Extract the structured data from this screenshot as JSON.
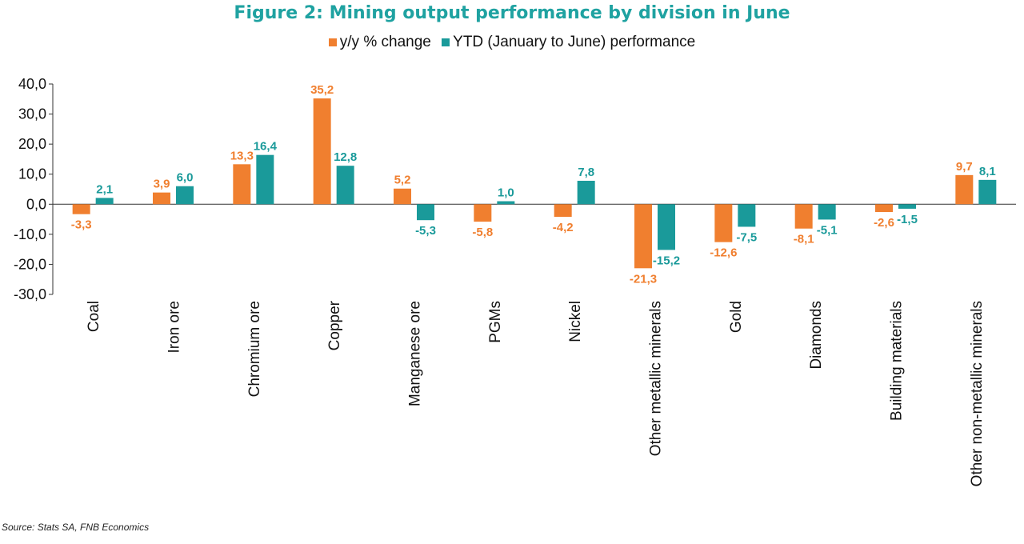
{
  "title": "Figure 2: Mining output performance by division in June",
  "source": "Source: Stats SA, FNB Economics",
  "colors": {
    "series1": "#f07f2f",
    "series2": "#1a9a9a",
    "axis": "#333333"
  },
  "chart_data": {
    "type": "bar",
    "categories": [
      "Coal",
      "Iron ore",
      "Chromium ore",
      "Copper",
      "Manganese ore",
      "PGMs",
      "Nickel",
      "Other metallic minerals",
      "Gold",
      "Diamonds",
      "Building materials",
      "Other non-metallic minerals"
    ],
    "series": [
      {
        "name": "y/y % change",
        "values": [
          -3.3,
          3.9,
          13.3,
          35.2,
          5.2,
          -5.8,
          -4.2,
          -21.3,
          -12.6,
          -8.1,
          -2.6,
          9.7
        ]
      },
      {
        "name": "YTD (January to June) performance",
        "values": [
          2.1,
          6.0,
          16.4,
          12.8,
          -5.3,
          1.0,
          7.8,
          -15.2,
          -7.5,
          -5.1,
          -1.5,
          8.1
        ]
      }
    ],
    "value_labels": [
      [
        "-3,3",
        "3,9",
        "13,3",
        "35,2",
        "5,2",
        "-5,8",
        "-4,2",
        "-21,3",
        "-12,6",
        "-8,1",
        "-2,6",
        "9,7"
      ],
      [
        "2,1",
        "6,0",
        "16,4",
        "12,8",
        "-5,3",
        "1,0",
        "7,8",
        "-15,2",
        "-7,5",
        "-5,1",
        "-1,5",
        "8,1"
      ]
    ],
    "yticks": [
      40,
      30,
      20,
      10,
      0,
      -10,
      -20,
      -30
    ],
    "ytick_labels": [
      "40,0",
      "30,0",
      "20,0",
      "10,0",
      "0,0",
      "-10,0",
      "-20,0",
      "-30,0"
    ],
    "ylim": [
      -30,
      40
    ],
    "legend_position": "top-center",
    "grid": false
  }
}
